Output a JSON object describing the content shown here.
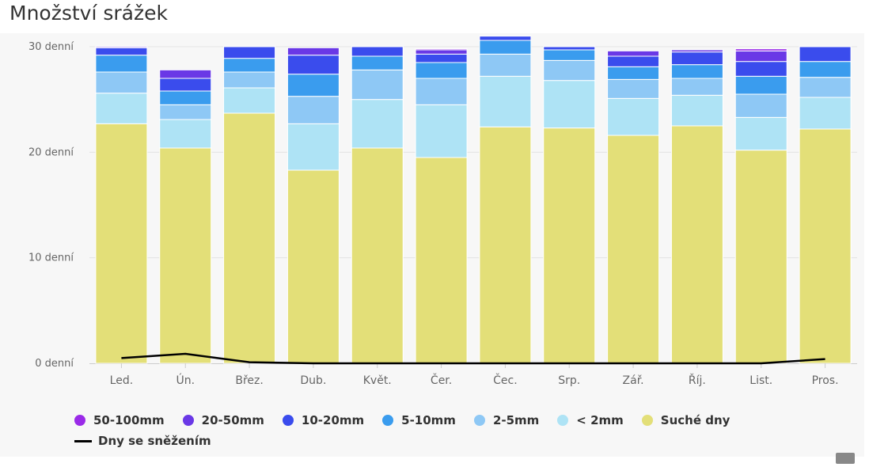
{
  "chart_data": {
    "type": "bar",
    "stacked": true,
    "title": "Množství srážek",
    "categories": [
      "Led.",
      "Ún.",
      "Břez.",
      "Dub.",
      "Květ.",
      "Čer.",
      "Čec.",
      "Srp.",
      "Zář.",
      "Říj.",
      "List.",
      "Pros."
    ],
    "y_ticks": [
      "0 denní",
      "10 denní",
      "20 denní",
      "30 denní"
    ],
    "ylim": [
      0,
      30
    ],
    "grid": true,
    "legend_position": "bottom",
    "series": [
      {
        "name": "Suché dny",
        "color": "#e3df78",
        "values": [
          22.7,
          20.4,
          23.7,
          18.3,
          20.4,
          19.5,
          22.4,
          22.3,
          21.6,
          22.5,
          20.2,
          22.2
        ]
      },
      {
        "name": "< 2mm",
        "color": "#aee3f5",
        "values": [
          2.9,
          2.7,
          2.4,
          4.4,
          4.6,
          5.0,
          4.8,
          4.5,
          3.5,
          2.9,
          3.1,
          3.0
        ]
      },
      {
        "name": "2-5mm",
        "color": "#8ec8f5",
        "values": [
          2.0,
          1.4,
          1.5,
          2.6,
          2.8,
          2.5,
          2.1,
          1.9,
          1.8,
          1.6,
          2.2,
          1.9
        ]
      },
      {
        "name": "5-10mm",
        "color": "#3a9cee",
        "values": [
          1.6,
          1.3,
          1.3,
          2.1,
          1.3,
          1.5,
          1.3,
          1.0,
          1.2,
          1.3,
          1.7,
          1.5
        ]
      },
      {
        "name": "10-20mm",
        "color": "#3a4ced",
        "values": [
          0.7,
          1.2,
          1.1,
          1.8,
          0.9,
          0.8,
          0.4,
          0.3,
          1.0,
          1.2,
          1.4,
          1.4
        ]
      },
      {
        "name": "20-50mm",
        "color": "#6a38e6",
        "values": [
          0.1,
          0.8,
          0.0,
          0.7,
          0.0,
          0.4,
          0.0,
          0.0,
          0.5,
          0.2,
          1.0,
          0.0
        ]
      },
      {
        "name": "50-100mm",
        "color": "#9a2ae8",
        "values": [
          0.0,
          0.0,
          0.0,
          0.0,
          0.0,
          0.1,
          0.0,
          0.0,
          0.0,
          0.0,
          0.2,
          0.0
        ]
      }
    ],
    "line_series": {
      "name": "Dny se sněžením",
      "color": "#000000",
      "values": [
        0.5,
        0.9,
        0.1,
        0.0,
        0.0,
        0.0,
        0.0,
        0.0,
        0.0,
        0.0,
        0.0,
        0.4
      ]
    },
    "legend": [
      "50-100mm",
      "20-50mm",
      "10-20mm",
      "5-10mm",
      "2-5mm",
      "< 2mm",
      "Suché dny",
      "Dny se sněžením"
    ]
  }
}
